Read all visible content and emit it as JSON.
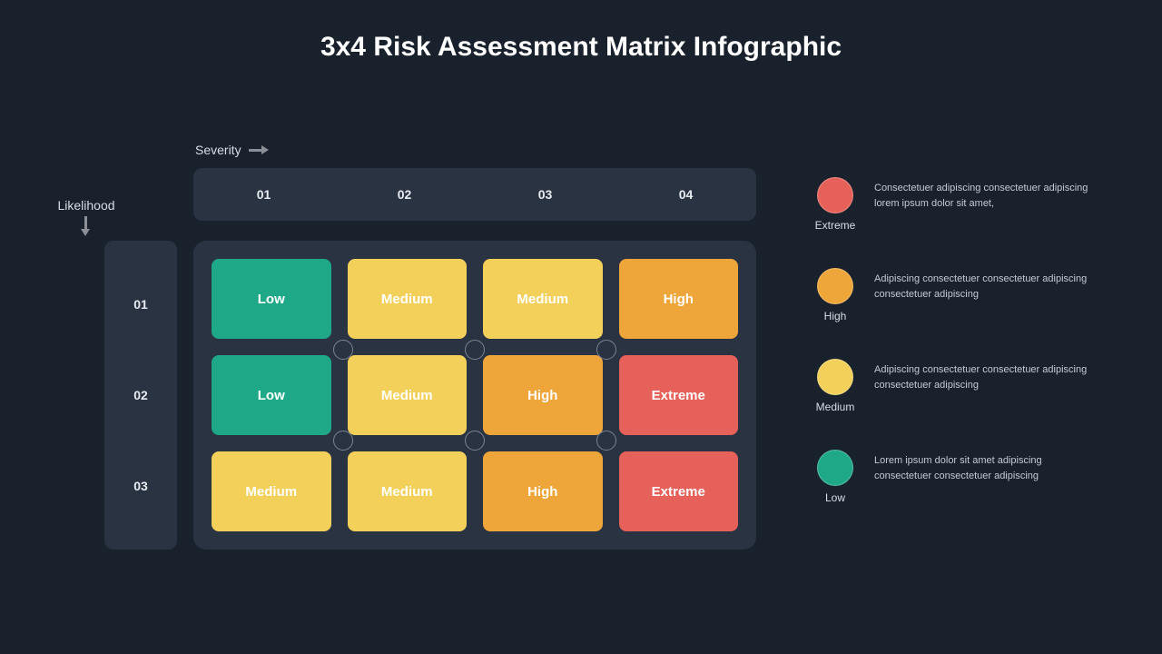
{
  "title": "3x4 Risk Assessment Matrix Infographic",
  "axes": {
    "severity_label": "Severity",
    "likelihood_label": "Likelihood",
    "columns": [
      "01",
      "02",
      "03",
      "04"
    ],
    "rows": [
      "01",
      "02",
      "03"
    ]
  },
  "colors": {
    "background": "#19212c",
    "panel": "#2a3342",
    "low": "#1fa888",
    "medium": "#f2d05a",
    "high": "#eea539",
    "extreme": "#e6615a",
    "node_border": "#7a8494",
    "text": "#ffffff",
    "muted_text": "#d8dde5",
    "legend_text": "#c4cad4"
  },
  "matrix": {
    "type": "heatmap",
    "n_cols": 4,
    "n_rows": 3,
    "cell_radius": 8,
    "gap": 18,
    "cells": [
      [
        {
          "label": "Low",
          "level": "low"
        },
        {
          "label": "Medium",
          "level": "medium"
        },
        {
          "label": "Medium",
          "level": "medium"
        },
        {
          "label": "High",
          "level": "high"
        }
      ],
      [
        {
          "label": "Low",
          "level": "low"
        },
        {
          "label": "Medium",
          "level": "medium"
        },
        {
          "label": "High",
          "level": "high"
        },
        {
          "label": "Extreme",
          "level": "extreme"
        }
      ],
      [
        {
          "label": "Medium",
          "level": "medium"
        },
        {
          "label": "Medium",
          "level": "medium"
        },
        {
          "label": "High",
          "level": "high"
        },
        {
          "label": "Extreme",
          "level": "extreme"
        }
      ]
    ],
    "nodes": [
      {
        "col_pct": 25,
        "row_pct": 33.33
      },
      {
        "col_pct": 50,
        "row_pct": 33.33
      },
      {
        "col_pct": 75,
        "row_pct": 33.33
      },
      {
        "col_pct": 25,
        "row_pct": 66.66
      },
      {
        "col_pct": 50,
        "row_pct": 66.66
      },
      {
        "col_pct": 75,
        "row_pct": 66.66
      }
    ]
  },
  "legend": [
    {
      "label": "Extreme",
      "level": "extreme",
      "text": "Consectetuer adipiscing consectetuer adipiscing lorem ipsum dolor sit amet,"
    },
    {
      "label": "High",
      "level": "high",
      "text": "Adipiscing consectetuer consectetuer adipiscing consectetuer adipiscing"
    },
    {
      "label": "Medium",
      "level": "medium",
      "text": "Adipiscing consectetuer consectetuer adipiscing consectetuer adipiscing"
    },
    {
      "label": "Low",
      "level": "low",
      "text": "Lorem ipsum dolor sit amet adipiscing consectetuer consectetuer adipiscing"
    }
  ],
  "typography": {
    "title_fontsize": 30,
    "header_fontsize": 14,
    "cell_fontsize": 15,
    "legend_label_fontsize": 12,
    "legend_text_fontsize": 11
  }
}
